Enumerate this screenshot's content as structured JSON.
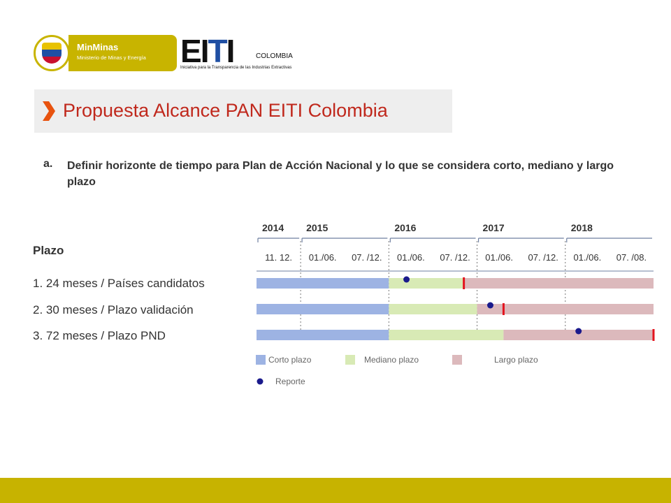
{
  "header": {
    "minminas_title": "MinMinas",
    "minminas_subtitle": "Ministerio de Minas y Energía",
    "eiti_logo": "EITI",
    "eiti_country": "COLOMBIA",
    "eiti_tagline": "Iniciativa para la Transparencia de las Industrias Extractivas"
  },
  "title": "Propuesta Alcance PAN EITI Colombia",
  "subtitle": {
    "marker": "a.",
    "text": "Definir horizonte de tiempo para Plan de Acción Nacional y lo que se considera corto, mediano y largo plazo"
  },
  "plazo_label": "Plazo",
  "rows": [
    "1. 24 meses / Países candidatos",
    "2. 30 meses / Plazo validación",
    "3. 72 meses / Plazo PND"
  ],
  "colors": {
    "corto": "#9db3e3",
    "mediano": "#d8eab5",
    "largo": "#dcb9bc",
    "reporte": "#1a1a8c",
    "marker": "#e3141e",
    "title": "#c0281c",
    "footer": "#c7b300"
  },
  "chart_data": {
    "type": "gantt",
    "years": [
      "2014",
      "2015",
      "2016",
      "2017",
      "2018"
    ],
    "periods": [
      "11. 12.",
      "01./06.",
      "07. /12.",
      "01./06.",
      "07. /12.",
      "01./06.",
      "07. /12.",
      "01./06.",
      "07. /08."
    ],
    "series": [
      {
        "name": "1. 24 meses / Países candidatos",
        "corto": [
          0,
          3
        ],
        "mediano": [
          3,
          4.7
        ],
        "largo": [
          4.7,
          9
        ],
        "reporte": 3.4,
        "end_marker": 4.7
      },
      {
        "name": "2. 30 meses / Plazo validación",
        "corto": [
          0,
          3
        ],
        "mediano": [
          3,
          5
        ],
        "largo": [
          5,
          9
        ],
        "reporte": 5.3,
        "end_marker": 5.6
      },
      {
        "name": "3. 72 meses / Plazo PND",
        "corto": [
          0,
          3
        ],
        "mediano": [
          3,
          5.6
        ],
        "largo": [
          5.6,
          9
        ],
        "reporte": 7.3,
        "end_marker": 9
      }
    ],
    "legend": {
      "corto": "Corto plazo",
      "mediano": "Mediano plazo",
      "largo": "Largo plazo",
      "reporte": "Reporte"
    }
  }
}
